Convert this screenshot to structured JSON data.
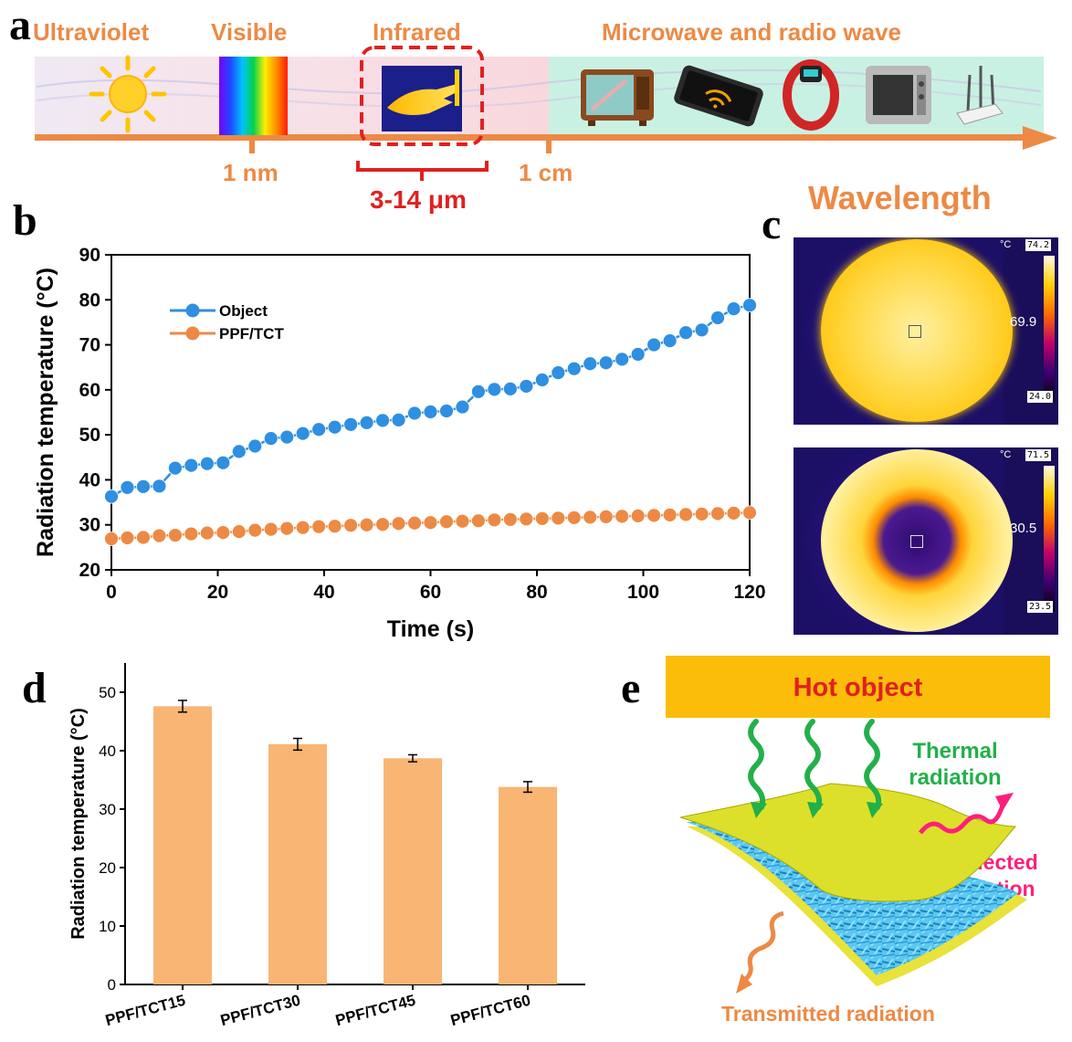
{
  "panel_labels": {
    "a": "a",
    "b": "b",
    "c": "c",
    "d": "d",
    "e": "e"
  },
  "spectrum": {
    "regions": [
      "Ultraviolet",
      "Visible",
      "Infrared",
      "Microwave and radio wave"
    ],
    "ticks": [
      "1 nm",
      "1 cm"
    ],
    "ir_range": "3-14 μm",
    "axis_label": "Wavelength",
    "icons": [
      "sun-icon",
      "rainbow-icon",
      "thermal-hand-icon",
      "tv-icon",
      "smartphone-icon",
      "smartwatch-icon",
      "oven-icon",
      "router-icon"
    ]
  },
  "thermal_images": {
    "top": {
      "unit": "°C",
      "max": "74.2",
      "center": "69.9",
      "min": "24.0"
    },
    "bottom": {
      "unit": "°C",
      "max": "71.5",
      "center": "30.5",
      "min": "23.5"
    }
  },
  "schematic": {
    "hot_object": "Hot object",
    "thermal": "Thermal radiation",
    "reflected": "Reflected radiation",
    "transmitted": "Transmitted radiation"
  },
  "colors": {
    "orange": "#ec8a45",
    "blue": "#2f8fe0",
    "bar": "#f8b573",
    "red": "#e02020",
    "green": "#22b04a",
    "pink": "#ff1f7a"
  },
  "chart_data": [
    {
      "type": "line",
      "title": "",
      "xlabel": "Time (s)",
      "ylabel": "Radiation temperature (°C)",
      "xlim": [
        0,
        120
      ],
      "ylim": [
        20,
        90
      ],
      "xticks": [
        0,
        20,
        40,
        60,
        80,
        100,
        120
      ],
      "yticks": [
        20,
        30,
        40,
        50,
        60,
        70,
        80,
        90
      ],
      "legend": "top-left",
      "x": [
        0,
        3,
        6,
        9,
        12,
        15,
        18,
        21,
        24,
        27,
        30,
        33,
        36,
        39,
        42,
        45,
        48,
        51,
        54,
        57,
        60,
        63,
        66,
        69,
        72,
        75,
        78,
        81,
        84,
        87,
        90,
        93,
        96,
        99,
        102,
        105,
        108,
        111,
        114,
        117,
        120
      ],
      "series": [
        {
          "name": "Object",
          "values": [
            36.3,
            38.3,
            38.5,
            38.6,
            42.6,
            43.2,
            43.6,
            43.8,
            46.3,
            47.5,
            49.2,
            49.5,
            50.3,
            51.2,
            51.7,
            52.3,
            52.7,
            53.2,
            53.3,
            54.8,
            55.1,
            55.3,
            56.2,
            59.6,
            60.1,
            60.2,
            60.8,
            62.2,
            63.8,
            64.7,
            65.8,
            66.0,
            66.8,
            67.9,
            70.0,
            70.9,
            72.7,
            73.3,
            76.0,
            78.0,
            78.8
          ]
        },
        {
          "name": "PPF/TCT",
          "values": [
            26.9,
            27.1,
            27.2,
            27.6,
            27.7,
            28.0,
            28.2,
            28.3,
            28.5,
            28.8,
            29.0,
            29.2,
            29.4,
            29.6,
            29.7,
            29.9,
            30.0,
            30.1,
            30.3,
            30.4,
            30.5,
            30.7,
            30.8,
            30.9,
            31.1,
            31.2,
            31.3,
            31.4,
            31.5,
            31.6,
            31.7,
            31.8,
            31.9,
            32.0,
            32.1,
            32.2,
            32.3,
            32.4,
            32.5,
            32.6,
            32.7
          ]
        }
      ]
    },
    {
      "type": "bar",
      "title": "",
      "xlabel": "",
      "ylabel": "Radiation temperature (°C)",
      "ylim": [
        0,
        55
      ],
      "yticks": [
        0,
        10,
        20,
        30,
        40,
        50
      ],
      "categories": [
        "PPF/TCT15",
        "PPF/TCT30",
        "PPF/TCT45",
        "PPF/TCT60"
      ],
      "values": [
        47.6,
        41.1,
        38.7,
        33.8
      ],
      "errors": [
        1.0,
        1.0,
        0.6,
        0.9
      ]
    }
  ]
}
